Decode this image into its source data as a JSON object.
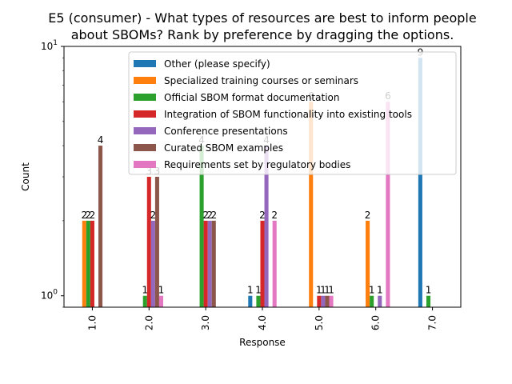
{
  "chart_data": {
    "type": "bar",
    "title": "E5 (consumer) - What types of resources are best to inform people about SBOMs? Rank by preference by dragging the options.",
    "title_lines": [
      "E5 (consumer) - What types of resources are best to inform people",
      "about SBOMs? Rank by preference by dragging the options."
    ],
    "xlabel": "Response",
    "ylabel": "Count",
    "yscale": "log",
    "ylim": [
      0.9,
      10
    ],
    "yticks": [
      {
        "value": 1,
        "base": "10",
        "exp": "0"
      },
      {
        "value": 10,
        "base": "10",
        "exp": "1"
      }
    ],
    "categories": [
      "1.0",
      "2.0",
      "3.0",
      "4.0",
      "5.0",
      "6.0",
      "7.0"
    ],
    "legend_position": "upper-right",
    "grid": false,
    "series": [
      {
        "name": "Other (please specify)",
        "color": "#1f77b4",
        "values": [
          null,
          null,
          null,
          1,
          null,
          null,
          9
        ]
      },
      {
        "name": "Specialized training courses or seminars",
        "color": "#ff7f0e",
        "values": [
          2,
          null,
          null,
          null,
          6,
          2,
          null
        ]
      },
      {
        "name": "Official SBOM format documentation",
        "color": "#2ca02c",
        "values": [
          2,
          1,
          4,
          1,
          null,
          1,
          1
        ]
      },
      {
        "name": "Integration of SBOM functionality into existing tools",
        "color": "#d62728",
        "values": [
          2,
          3,
          2,
          2,
          1,
          null,
          null
        ]
      },
      {
        "name": "Conference presentations",
        "color": "#9467bd",
        "values": [
          null,
          2,
          2,
          4,
          1,
          1,
          null
        ]
      },
      {
        "name": "Curated SBOM examples",
        "color": "#8c564b",
        "values": [
          4,
          3,
          2,
          null,
          1,
          null,
          null
        ]
      },
      {
        "name": "Requirements set by regulatory bodies",
        "color": "#e377c2",
        "values": [
          null,
          1,
          null,
          2,
          1,
          6,
          null
        ]
      }
    ]
  }
}
